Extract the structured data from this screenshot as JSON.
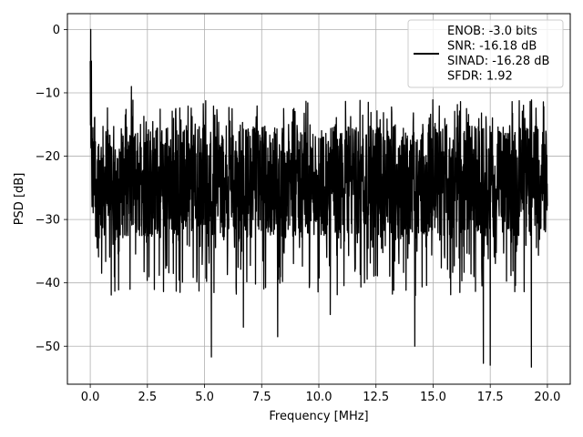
{
  "chart_data": {
    "type": "line",
    "title": "",
    "xlabel": "Frequency [MHz]",
    "ylabel": "PSD [dB]",
    "xlim": [
      -1.0,
      21.0
    ],
    "ylim": [
      -56.0,
      2.5
    ],
    "xticks": [
      0.0,
      2.5,
      5.0,
      7.5,
      10.0,
      12.5,
      15.0,
      17.5,
      20.0
    ],
    "xtick_labels": [
      "0.0",
      "2.5",
      "5.0",
      "7.5",
      "10.0",
      "12.5",
      "15.0",
      "17.5",
      "20.0"
    ],
    "yticks": [
      0,
      -10,
      -20,
      -30,
      -40,
      -50
    ],
    "ytick_labels": [
      "0",
      "−10",
      "−20",
      "−30",
      "−40",
      "−50"
    ],
    "grid": true,
    "legend_position": "top-right",
    "legend_lines": [
      "ENOB: -3.0 bits",
      "SNR: -16.18 dB",
      "SINAD: -16.28 dB",
      "SFDR: 1.92"
    ],
    "series": [
      {
        "color": "#000000",
        "x_range": [
          0.0,
          20.0
        ],
        "points": 2048,
        "typical_band_db": [
          -33,
          -15
        ],
        "x": [
          0.0,
          0.02,
          0.05,
          0.3,
          1.8,
          5.3,
          6.7,
          8.2,
          10.5,
          14.2,
          17.2,
          17.5,
          19.3
        ],
        "values": [
          -5.0,
          0.0,
          -5.0,
          -34.5,
          -9.0,
          -51.7,
          -47.0,
          -48.5,
          -45.0,
          -50.0,
          -52.7,
          -53.0,
          -53.3
        ]
      }
    ]
  }
}
